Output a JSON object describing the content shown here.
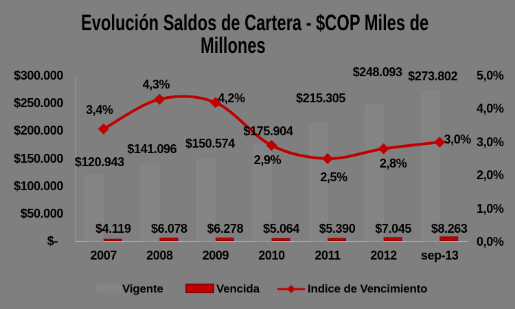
{
  "title": {
    "line1": "Evolución Saldos de Cartera - $COP Miles de",
    "line2": "Millones"
  },
  "colors": {
    "background": "#7F7F7F",
    "vigente": "#848484",
    "vigente_border": "#888888",
    "vencida": "#C00000",
    "vencida_border": "#8F0000",
    "line": "#C00000",
    "y_axis_line": "#9E9E9E",
    "x_axis_line": "#B3B3B3",
    "text": "#000000"
  },
  "chart_data": {
    "type": "combo",
    "categories": [
      "2007",
      "2008",
      "2009",
      "2010",
      "2011",
      "2012",
      "sep-13"
    ],
    "series": [
      {
        "name": "Vigente",
        "type": "bar",
        "axis": "left",
        "values": [
          120943,
          141096,
          150574,
          175904,
          215305,
          248093,
          273802
        ],
        "labels": [
          "$120.943",
          "$141.096",
          "$150.574",
          "$175.904",
          "$215.305",
          "$248.093",
          "$273.802"
        ]
      },
      {
        "name": "Vencida",
        "type": "bar",
        "axis": "left",
        "values": [
          4119,
          6078,
          6278,
          5064,
          5390,
          7045,
          8263
        ],
        "labels": [
          "$4.119",
          "$6.078",
          "$6.278",
          "$5.064",
          "$5.390",
          "$7.045",
          "$8.263"
        ]
      },
      {
        "name": "Indice de Vencimiento",
        "type": "line",
        "axis": "right",
        "values": [
          3.4,
          4.3,
          4.2,
          2.9,
          2.5,
          2.8,
          3.0
        ],
        "labels": [
          "3,4%",
          "4,3%",
          "4,2%",
          "2,9%",
          "2,5%",
          "2,8%",
          "3,0%"
        ]
      }
    ],
    "left_axis": {
      "min": 0,
      "max": 300000,
      "ticks": [
        "$300.000",
        "$250.000",
        "$200.000",
        "$150.000",
        "$100.000",
        "$50.000",
        "$-"
      ]
    },
    "right_axis": {
      "min": 0,
      "max": 5,
      "ticks": [
        "5,0%",
        "4,0%",
        "3,0%",
        "2,0%",
        "1,0%",
        "0,0%"
      ]
    },
    "legend": [
      {
        "label": "Vigente",
        "marker": "bar"
      },
      {
        "label": "Vencida",
        "marker": "bar"
      },
      {
        "label": "Indice de Vencimiento",
        "marker": "line"
      }
    ],
    "grid": false,
    "legend_position": "bottom"
  }
}
